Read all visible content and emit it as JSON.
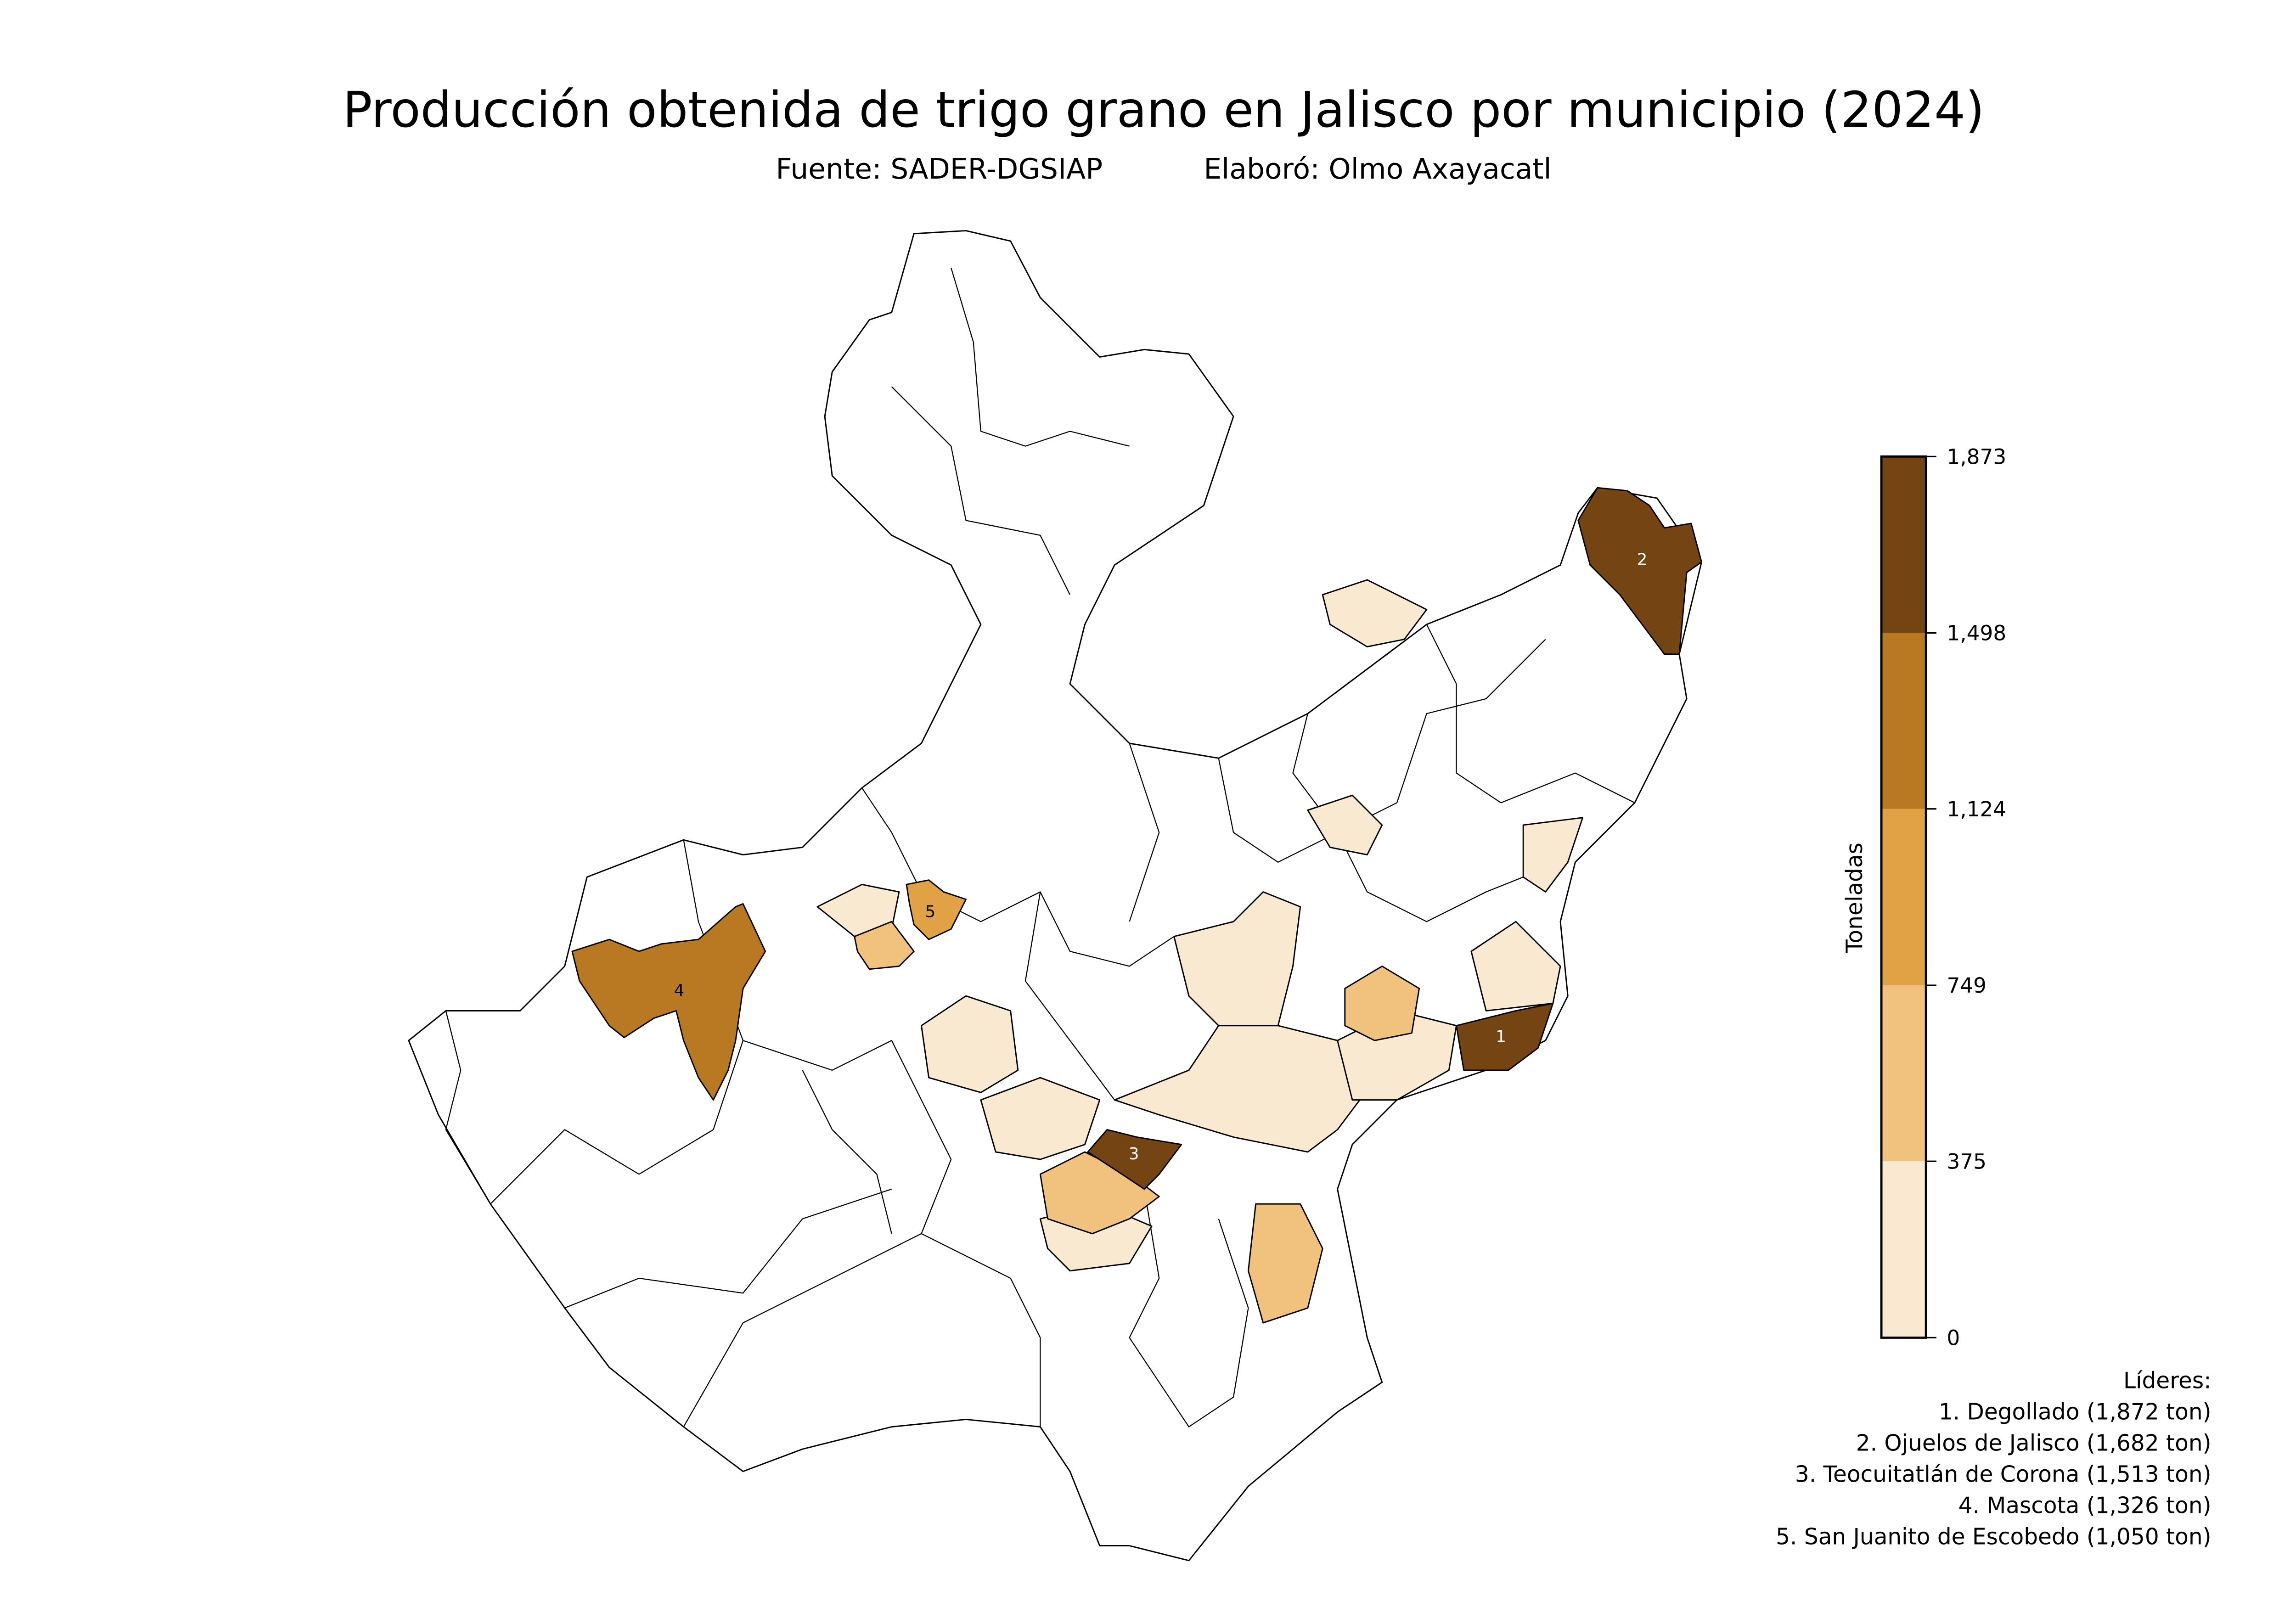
{
  "chart_data": {
    "type": "choropleth",
    "title": "Producción obtenida de trigo grano en Jalisco por municipio (2024)",
    "subtitle_source": "Fuente: SADER-DGSIAP",
    "subtitle_author": "Elaboró: Olmo Axayacatl",
    "colorbar": {
      "label": "Toneladas",
      "ticks": [
        "0",
        "375",
        "749",
        "1,124",
        "1,498",
        "1,873"
      ],
      "tick_values": [
        0,
        375,
        749,
        1124,
        1498,
        1873
      ],
      "colors": [
        "#f8e9d0",
        "#f0c27e",
        "#e0a245",
        "#b87922",
        "#744513"
      ]
    },
    "highlighted": [
      {
        "rank": "1",
        "name": "Degollado",
        "value": 1872,
        "color": "#744513"
      },
      {
        "rank": "2",
        "name": "Ojuelos de Jalisco",
        "value": 1682,
        "color": "#744513"
      },
      {
        "rank": "3",
        "name": "Teocuitatlán de Corona",
        "value": 1513,
        "color": "#744513"
      },
      {
        "rank": "4",
        "name": "Mascota",
        "value": 1326,
        "color": "#b87922"
      },
      {
        "rank": "5",
        "name": "San Juanito de Escobedo",
        "value": 1050,
        "color": "#e0a245"
      }
    ],
    "legend": {
      "title": "Líderes:",
      "items": [
        "1. Degollado (1,872 ton)",
        "2. Ojuelos de Jalisco (1,682 ton)",
        "3. Teocuitatlán de Corona (1,513 ton)",
        "4. Mascota (1,326 ton)",
        "5. San Juanito de Escobedo (1,050 ton)"
      ]
    }
  }
}
